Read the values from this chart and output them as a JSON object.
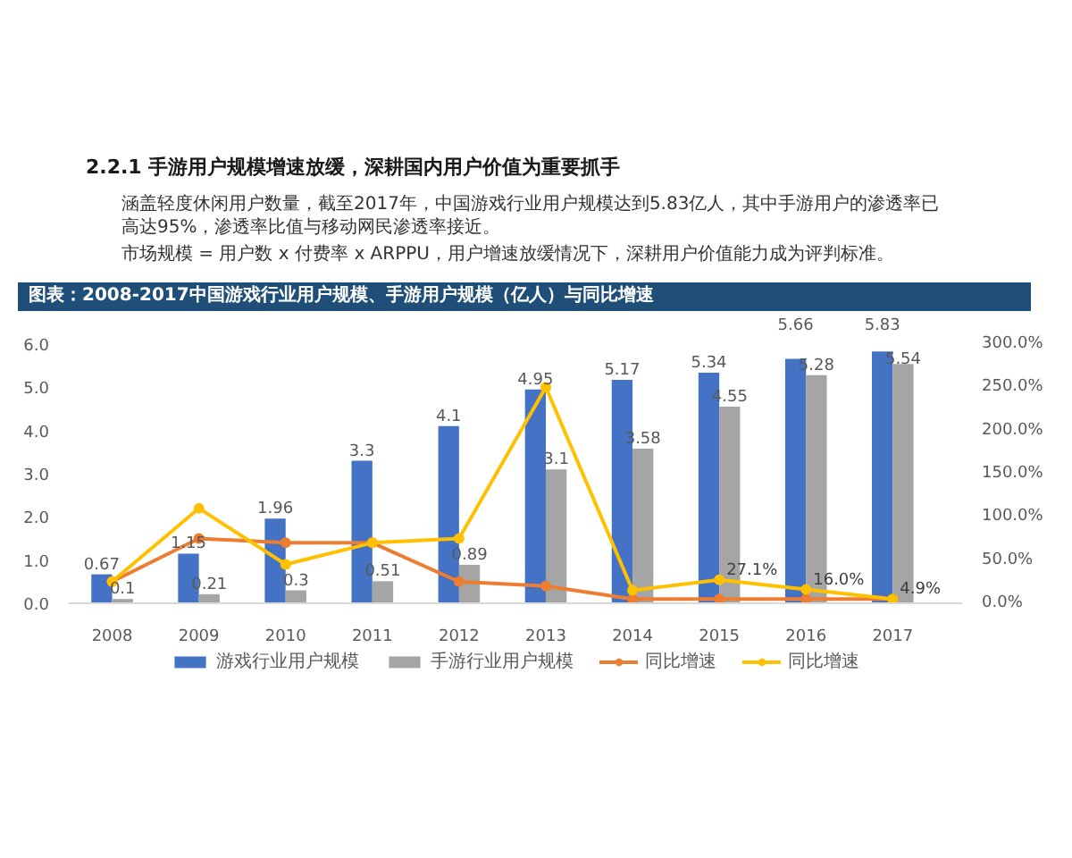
{
  "chart_data": {
    "type": "bar",
    "title": "2.2.1 手游用户规模增速放缓，深耕国内用户价值为重要抓手",
    "annotations": [
      "涵盖轻度休闲用户数量，截至2017年，中国游戏行业用户规模达到5.83亿人，其中手游用户的渗透率已高达95%，渗透率比值与移动网民渗透率接近。",
      "市场规模 = 用户数 x 付费率 x ARPPU，用户增速放缓情况下，深耕用户价值能力成为评判标准。"
    ],
    "subtitle": "图表：2008-2017中国游戏行业用户规模、手游用户规模（亿人）与同比增速",
    "categories": [
      "2008",
      "2009",
      "2010",
      "2011",
      "2012",
      "2013",
      "2014",
      "2015",
      "2016",
      "2017"
    ],
    "series": [
      {
        "name": "游戏行业用户规模",
        "color": "#4472c4",
        "values": [
          0.67,
          1.15,
          1.96,
          3.3,
          4.1,
          4.95,
          5.17,
          5.34,
          5.66,
          5.83
        ],
        "value_labels": [
          "0.67",
          "1.15",
          "1.96",
          "3.3",
          "4.1",
          "4.95",
          "5.17",
          "5.34",
          "5.66",
          "5.83"
        ]
      },
      {
        "name": "手游行业用户规模",
        "color": "#a5a5a5",
        "values": [
          0.1,
          0.21,
          0.3,
          0.51,
          0.89,
          3.1,
          3.58,
          4.55,
          5.28,
          5.54
        ],
        "value_labels": [
          "0.1",
          "0.21",
          "0.3",
          "0.51",
          "0.89",
          "3.1",
          "3.58",
          "4.55",
          "5.28",
          "5.54"
        ]
      },
      {
        "name": "同比增速",
        "type": "line",
        "axis": "y2",
        "color": "#ed7d31",
        "values": [
          25,
          75,
          70,
          70,
          25,
          20,
          5,
          5,
          5,
          5
        ]
      },
      {
        "name": "同比增速",
        "type": "line",
        "axis": "y2",
        "color": "#ffc000",
        "values": [
          25,
          110,
          45,
          70,
          75,
          250,
          15,
          27.1,
          16.0,
          4.9
        ],
        "value_labels": [
          null,
          null,
          null,
          null,
          null,
          null,
          null,
          "27.1%",
          "16.0%",
          "4.9%"
        ]
      }
    ],
    "ylim": [
      0,
      6
    ],
    "yticks": [
      {
        "value": 0,
        "label": "0.0"
      },
      {
        "value": 1,
        "label": "1.0"
      },
      {
        "value": 2,
        "label": "2.0"
      },
      {
        "value": 3,
        "label": "3.0"
      },
      {
        "value": 4,
        "label": "4.0"
      },
      {
        "value": 5,
        "label": "5.0"
      },
      {
        "value": 6,
        "label": "6.0"
      }
    ],
    "y2lim": [
      0,
      300
    ],
    "y2ticks": [
      {
        "value": 0,
        "label": "0.0%"
      },
      {
        "value": 50,
        "label": "50.0%"
      },
      {
        "value": 100,
        "label": "100.0%"
      },
      {
        "value": 150,
        "label": "150.0%"
      },
      {
        "value": 200,
        "label": "200.0%"
      },
      {
        "value": 250,
        "label": "250.0%"
      },
      {
        "value": 300,
        "label": "300.0%"
      }
    ],
    "grid": false,
    "legend": "bottom",
    "marker": "circle"
  }
}
